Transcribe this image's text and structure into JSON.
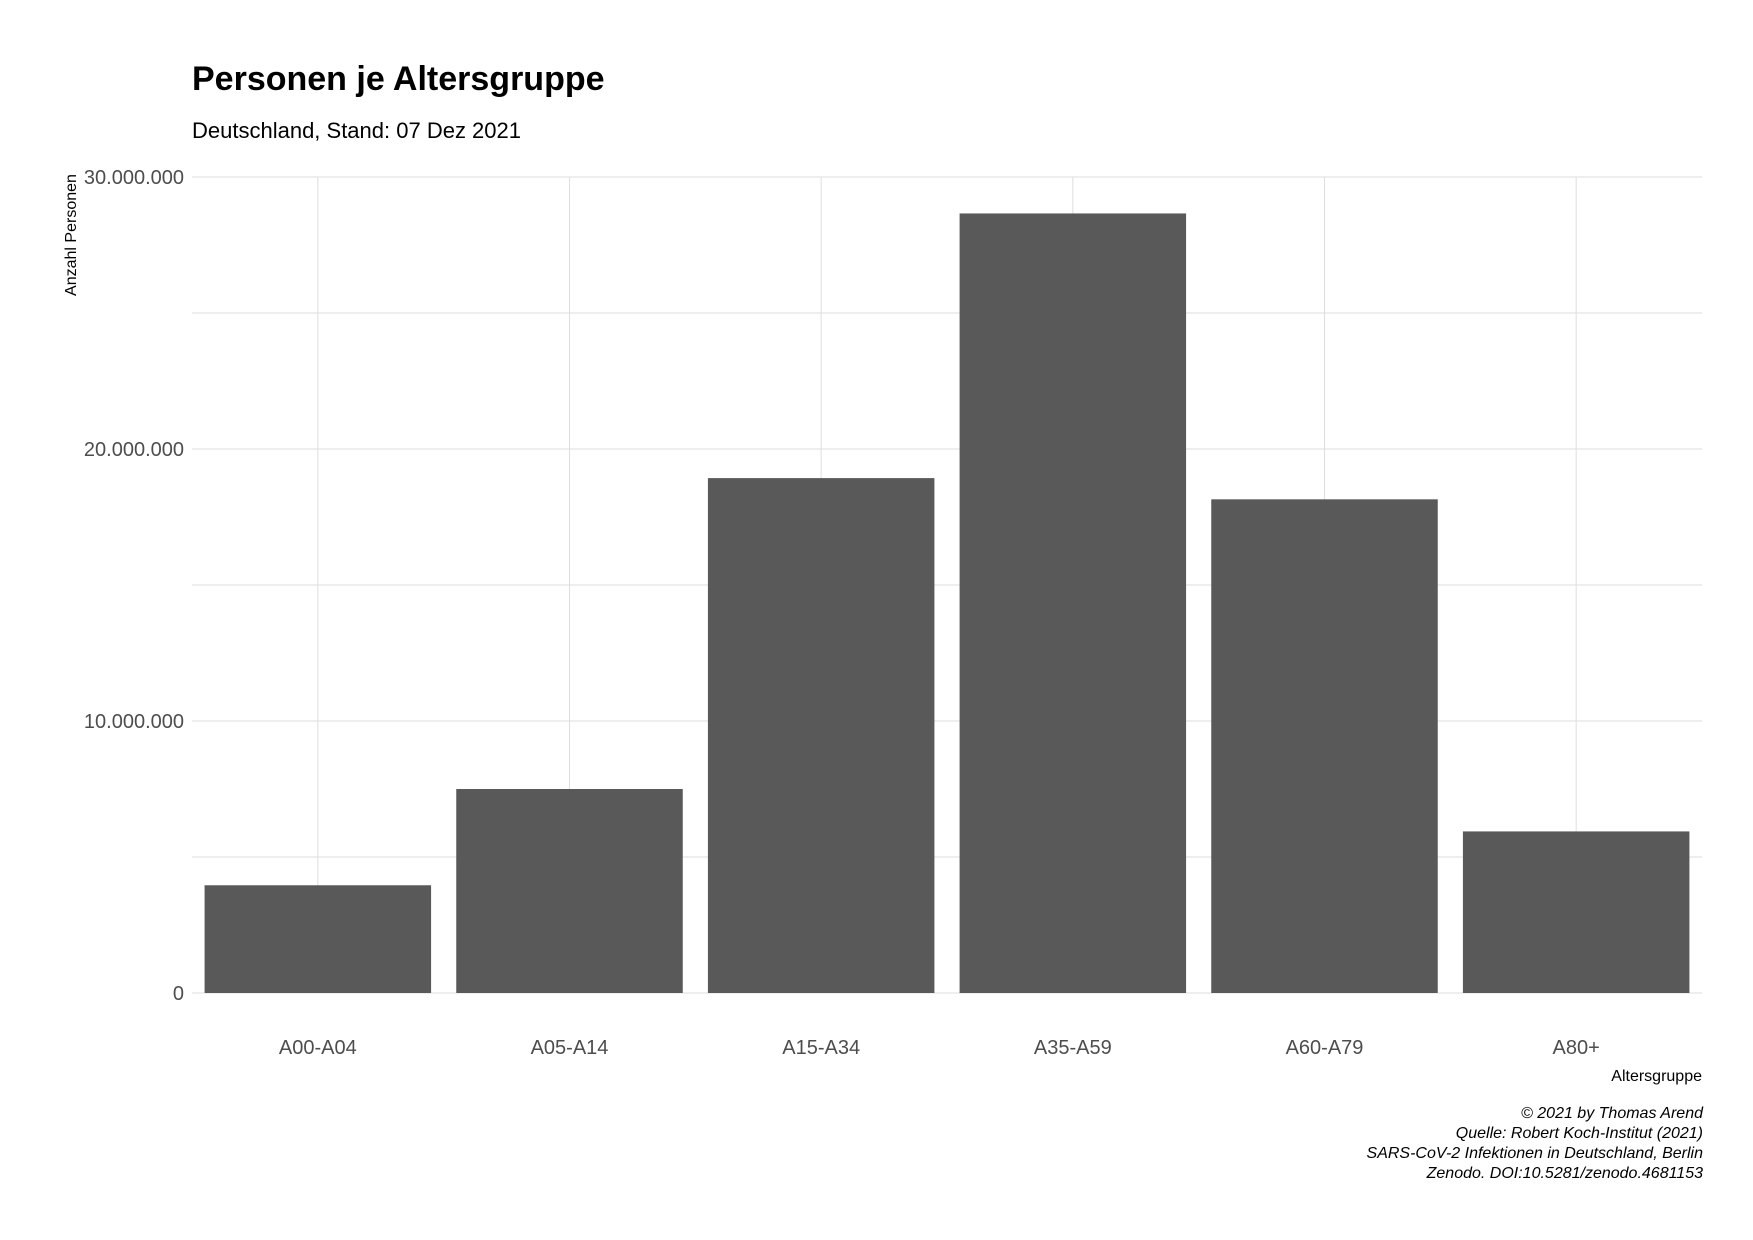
{
  "chart_data": {
    "type": "bar",
    "title": "Personen je Altersgruppe",
    "subtitle": "Deutschland, Stand: 07 Dez 2021",
    "xlabel": "Altersgruppe",
    "ylabel": "Anzahl Personen",
    "categories": [
      "A00-A04",
      "A05-A14",
      "A15-A34",
      "A35-A59",
      "A60-A79",
      "A80+"
    ],
    "values": [
      3961000,
      7500000,
      18930000,
      28660000,
      18150000,
      5940000
    ],
    "ylim": [
      0,
      30000000
    ],
    "yticks": [
      0,
      10000000,
      20000000,
      30000000
    ],
    "ytick_labels": [
      "0",
      "10.000.000",
      "20.000.000",
      "30.000.000"
    ],
    "grid": true,
    "legend": "none",
    "bar_color": "#595959",
    "grid_color": "#dedede",
    "caption": [
      "© 2021 by Thomas Arend",
      "Quelle: Robert Koch-Institut (2021)",
      "SARS-CoV-2 Infektionen in Deutschland, Berlin",
      "Zenodo. DOI:10.5281/zenodo.4681153"
    ]
  }
}
